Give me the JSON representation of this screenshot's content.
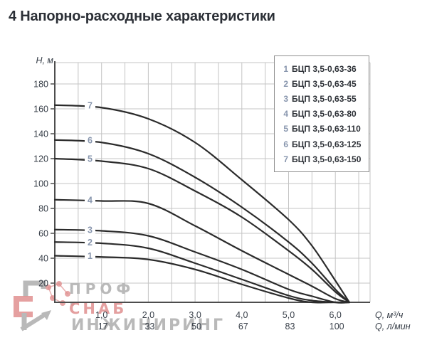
{
  "title": "4 Напорно-расходные характеристики",
  "axes": {
    "y_label": "Н, м",
    "x_label_m3h": "Q, м³/ч",
    "x_label_lmin": "Q, л/мин",
    "y_ticks": [
      20,
      40,
      60,
      80,
      100,
      120,
      140,
      160,
      180
    ],
    "x_ticks_m3h": [
      "1,0",
      "2,0",
      "3,0",
      "4,0",
      "5,0",
      "6,0"
    ],
    "x_ticks_lmin": [
      "17",
      "33",
      "50",
      "67",
      "83",
      "100"
    ]
  },
  "legend": {
    "items": [
      {
        "num": "1",
        "label": "БЦП 3,5-0,63-36"
      },
      {
        "num": "2",
        "label": "БЦП 3,5-0,63-45"
      },
      {
        "num": "3",
        "label": "БЦП 3,5-0,63-55"
      },
      {
        "num": "4",
        "label": "БЦП 3,5-0,63-80"
      },
      {
        "num": "5",
        "label": "БЦП 3,5-0,63-110"
      },
      {
        "num": "6",
        "label": "БЦП 3,5-0,63-125"
      },
      {
        "num": "7",
        "label": "БЦП 3,5-0,63-150"
      }
    ]
  },
  "chart_data": {
    "type": "line",
    "title": "Напорно-расходные характеристики",
    "xlabel": "Q, м³/ч",
    "xlabel_secondary": "Q, л/мин",
    "ylabel": "Н, м",
    "xlim": [
      0,
      6.74
    ],
    "ylim": [
      0,
      195
    ],
    "grid": true,
    "legend_position": "top-right",
    "x_tick_values_m3h": [
      1,
      2,
      3,
      4,
      5,
      6
    ],
    "x_tick_values_lmin": [
      17,
      33,
      50,
      67,
      83,
      100
    ],
    "x": [
      0,
      1,
      2,
      3,
      4,
      5,
      5.5,
      6,
      6.3
    ],
    "series": [
      {
        "curve_number": "1",
        "name": "БЦП 3,5-0,63-36",
        "head_m": [
          42,
          41,
          39,
          31,
          19,
          8,
          4.5,
          2.5,
          0
        ]
      },
      {
        "curve_number": "2",
        "name": "БЦП 3,5-0,63-45",
        "head_m": [
          53,
          52,
          48,
          36,
          23,
          10,
          6,
          3,
          0
        ]
      },
      {
        "curve_number": "3",
        "name": "БЦП 3,5-0,63-55",
        "head_m": [
          63,
          62,
          58,
          45,
          31,
          15,
          9.5,
          4,
          0
        ]
      },
      {
        "curve_number": "4",
        "name": "БЦП 3,5-0,63-80",
        "head_m": [
          87,
          86,
          84,
          66,
          46,
          27,
          17.5,
          7.5,
          0
        ]
      },
      {
        "curve_number": "5",
        "name": "БЦП 3,5-0,63-110",
        "head_m": [
          120,
          118,
          112,
          94,
          73,
          46,
          31,
          13,
          0
        ]
      },
      {
        "curve_number": "6",
        "name": "БЦП 3,5-0,63-125",
        "head_m": [
          135,
          133,
          124,
          105,
          81,
          53,
          36,
          15,
          0
        ]
      },
      {
        "curve_number": "7",
        "name": "БЦП 3,5-0,63-150",
        "head_m": [
          163,
          161,
          152,
          133,
          103,
          71,
          50,
          22,
          0
        ]
      }
    ]
  },
  "watermark": {
    "line1": "ПРОФ",
    "line2": "СНАБ",
    "line3": "ИНЖИНИРИНГ"
  },
  "colors": {
    "curve": "#2b2b2b",
    "grid": "#c4c4c4",
    "axis": "#4d4d4d",
    "tick_text": "#39404a",
    "curve_label": "#8795ad",
    "legend_number": "#8795ad",
    "legend_text": "#2e3238",
    "watermark_gray": "#b9b9b9",
    "watermark_red": "#e08f8f"
  }
}
